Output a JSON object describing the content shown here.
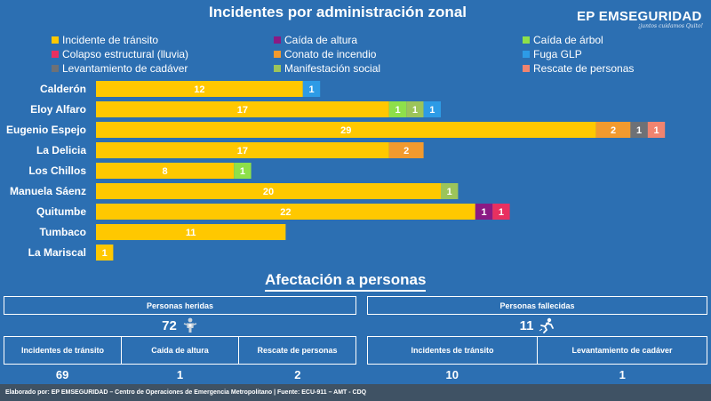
{
  "title": "Incidentes por administración zonal",
  "brand": {
    "name": "EP EMSEGURIDAD",
    "tagline": "¡juntos cuidamos Quito!"
  },
  "colors": {
    "Incidente de tránsito": "#ffc800",
    "Caída de altura": "#8a1a84",
    "Caída de árbol": "#8ee04a",
    "Colapso estructural (lluvia)": "#e83060",
    "Conato de incendio": "#f29a2e",
    "Fuga GLP": "#2d9be6",
    "Levantamiento de cadáver": "#6e7176",
    "Manifestación social": "#9cc45a",
    "Rescate de personas": "#f08470"
  },
  "legend": [
    "Incidente de tránsito",
    "Caída de altura",
    "Caída de árbol",
    "Colapso estructural (lluvia)",
    "Conato de incendio",
    "Fuga GLP",
    "Levantamiento de cadáver",
    "Manifestación social",
    "Rescate de personas"
  ],
  "chart_data": {
    "type": "bar",
    "orientation": "horizontal",
    "stacked": true,
    "title": "Incidentes por administración zonal",
    "legend_position": "top",
    "grid": false,
    "categories": [
      "Calderón",
      "Eloy Alfaro",
      "Eugenio Espejo",
      "La Delicia",
      "Los Chillos",
      "Manuela Sáenz",
      "Quitumbe",
      "Tumbaco",
      "La Mariscal"
    ],
    "series": [
      {
        "name": "Incidente de tránsito",
        "values": [
          12,
          17,
          29,
          17,
          8,
          20,
          22,
          11,
          1
        ]
      },
      {
        "name": "Caída de altura",
        "values": [
          0,
          0,
          0,
          0,
          0,
          0,
          1,
          0,
          0
        ]
      },
      {
        "name": "Caída de árbol",
        "values": [
          0,
          1,
          0,
          0,
          1,
          0,
          0,
          0,
          0
        ]
      },
      {
        "name": "Colapso estructural (lluvia)",
        "values": [
          0,
          0,
          0,
          0,
          0,
          0,
          1,
          0,
          0
        ]
      },
      {
        "name": "Conato de incendio",
        "values": [
          0,
          0,
          2,
          2,
          0,
          0,
          0,
          0,
          0
        ]
      },
      {
        "name": "Fuga GLP",
        "values": [
          1,
          1,
          0,
          0,
          0,
          0,
          0,
          0,
          0
        ]
      },
      {
        "name": "Levantamiento de cadáver",
        "values": [
          0,
          0,
          1,
          0,
          0,
          0,
          0,
          0,
          0
        ]
      },
      {
        "name": "Manifestación social",
        "values": [
          0,
          1,
          0,
          0,
          0,
          1,
          0,
          0,
          0
        ]
      },
      {
        "name": "Rescate de personas",
        "values": [
          0,
          0,
          1,
          0,
          0,
          0,
          0,
          0,
          0
        ]
      }
    ],
    "segment_order": [
      [
        "Incidente de tránsito",
        "Fuga GLP"
      ],
      [
        "Incidente de tránsito",
        "Caída de árbol",
        "Manifestación social",
        "Fuga GLP"
      ],
      [
        "Incidente de tránsito",
        "Conato de incendio",
        "Levantamiento de cadáver",
        "Rescate de personas"
      ],
      [
        "Incidente de tránsito",
        "Conato de incendio"
      ],
      [
        "Incidente de tránsito",
        "Caída de árbol"
      ],
      [
        "Incidente de tránsito",
        "Manifestación social"
      ],
      [
        "Incidente de tránsito",
        "Caída de altura",
        "Colapso estructural (lluvia)"
      ],
      [
        "Incidente de tránsito"
      ],
      [
        "Incidente de tránsito"
      ]
    ]
  },
  "affectation": {
    "title": "Afectación a personas",
    "injured": {
      "header": "Personas heridas",
      "total": "72",
      "icon": "injured-person-icon",
      "columns": [
        "Incidentes de tránsito",
        "Caída de altura",
        "Rescate de personas"
      ],
      "values": [
        "69",
        "1",
        "2"
      ]
    },
    "deceased": {
      "header": "Personas fallecidas",
      "total": "11",
      "icon": "falling-person-icon",
      "columns": [
        "Incidentes de tránsito",
        "Levantamiento de cadáver"
      ],
      "values": [
        "10",
        "1"
      ]
    }
  },
  "footer": "Elaborado por: EP EMSEGURIDAD – Centro de Operaciones de Emergencia Metropolitano | Fuente: ECU-911 – AMT - CDQ"
}
